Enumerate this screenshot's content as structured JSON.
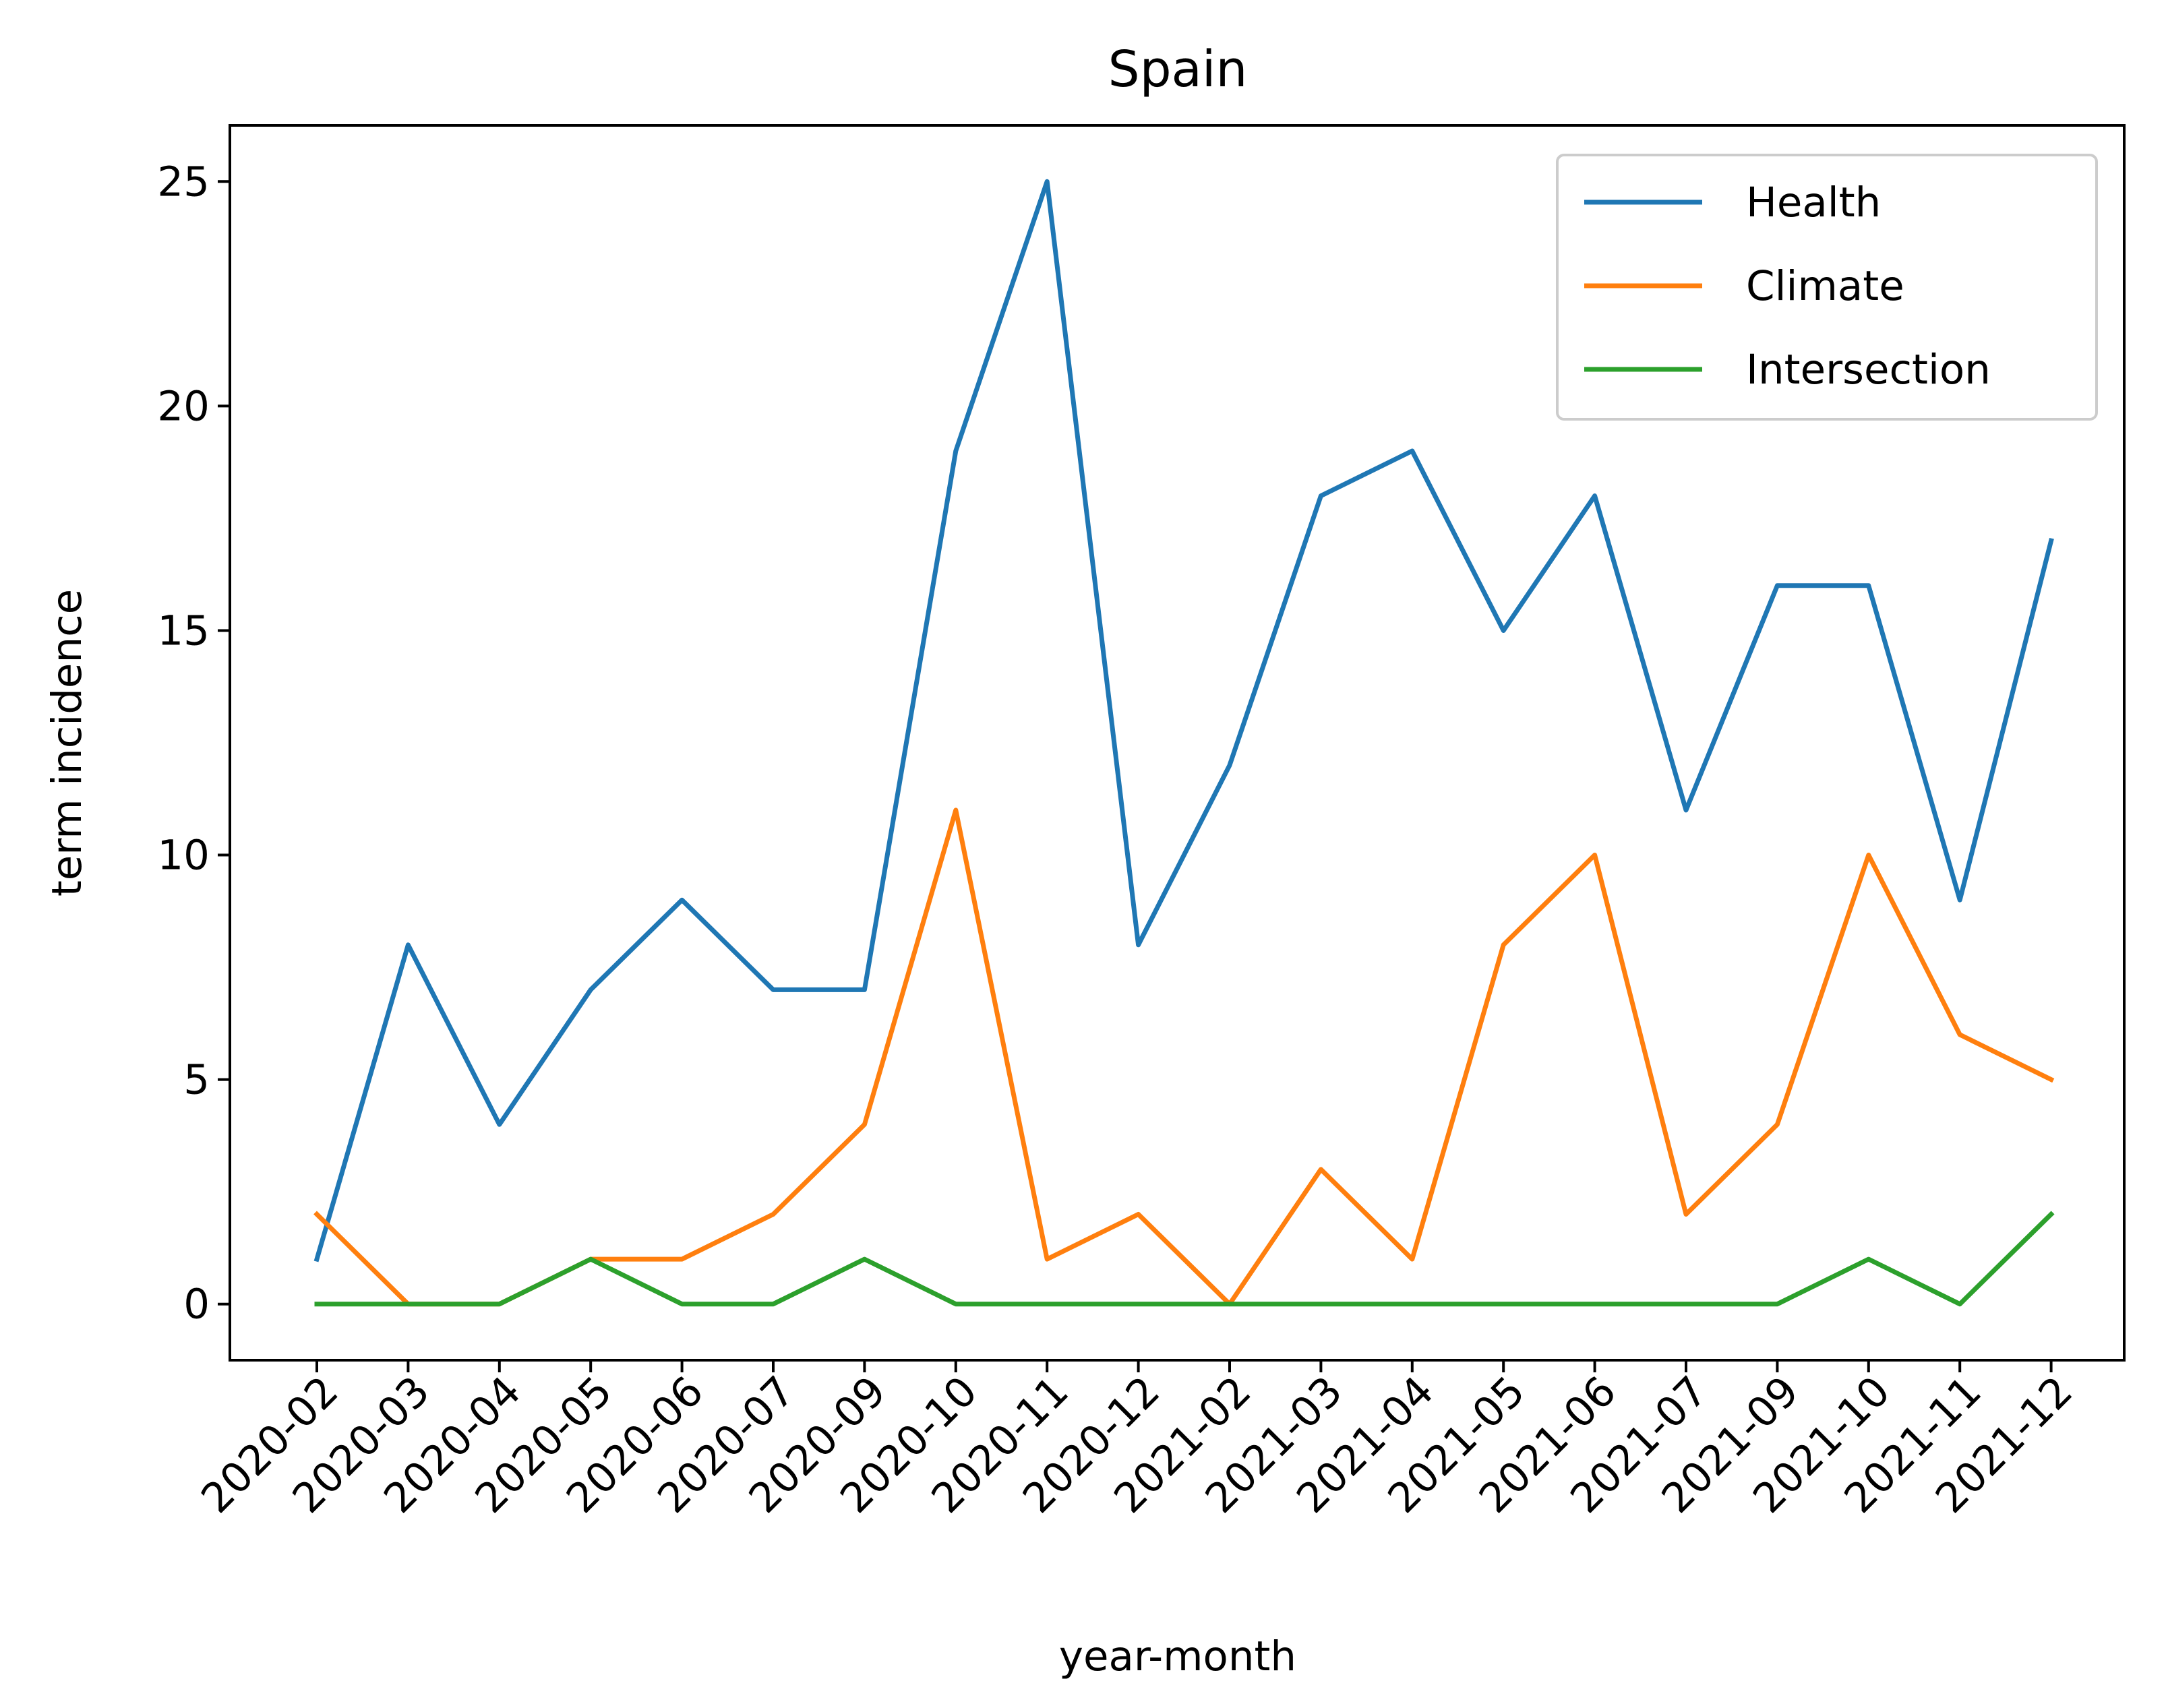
{
  "chart_data": {
    "type": "line",
    "title": "Spain",
    "xlabel": "year-month",
    "ylabel": "term incidence",
    "categories": [
      "2020-02",
      "2020-03",
      "2020-04",
      "2020-05",
      "2020-06",
      "2020-07",
      "2020-09",
      "2020-10",
      "2020-11",
      "2020-12",
      "2021-02",
      "2021-03",
      "2021-04",
      "2021-05",
      "2021-06",
      "2021-07",
      "2021-09",
      "2021-10",
      "2021-11",
      "2021-12"
    ],
    "series": [
      {
        "name": "Health",
        "color": "#1f77b4",
        "values": [
          1,
          8,
          4,
          7,
          9,
          7,
          7,
          19,
          25,
          8,
          12,
          18,
          19,
          15,
          18,
          11,
          16,
          16,
          9,
          17
        ]
      },
      {
        "name": "Climate",
        "color": "#ff7f0e",
        "values": [
          2,
          0,
          0,
          1,
          1,
          2,
          4,
          11,
          1,
          2,
          0,
          3,
          1,
          8,
          10,
          2,
          4,
          10,
          6,
          5
        ]
      },
      {
        "name": "Intersection",
        "color": "#2ca02c",
        "values": [
          0,
          0,
          0,
          1,
          0,
          0,
          1,
          0,
          0,
          0,
          0,
          0,
          0,
          0,
          0,
          0,
          0,
          1,
          0,
          2
        ]
      }
    ],
    "yticks": [
      0,
      5,
      10,
      15,
      20,
      25
    ],
    "ylim": [
      -1.25,
      26.25
    ],
    "legend": "top-right",
    "grid": false
  }
}
